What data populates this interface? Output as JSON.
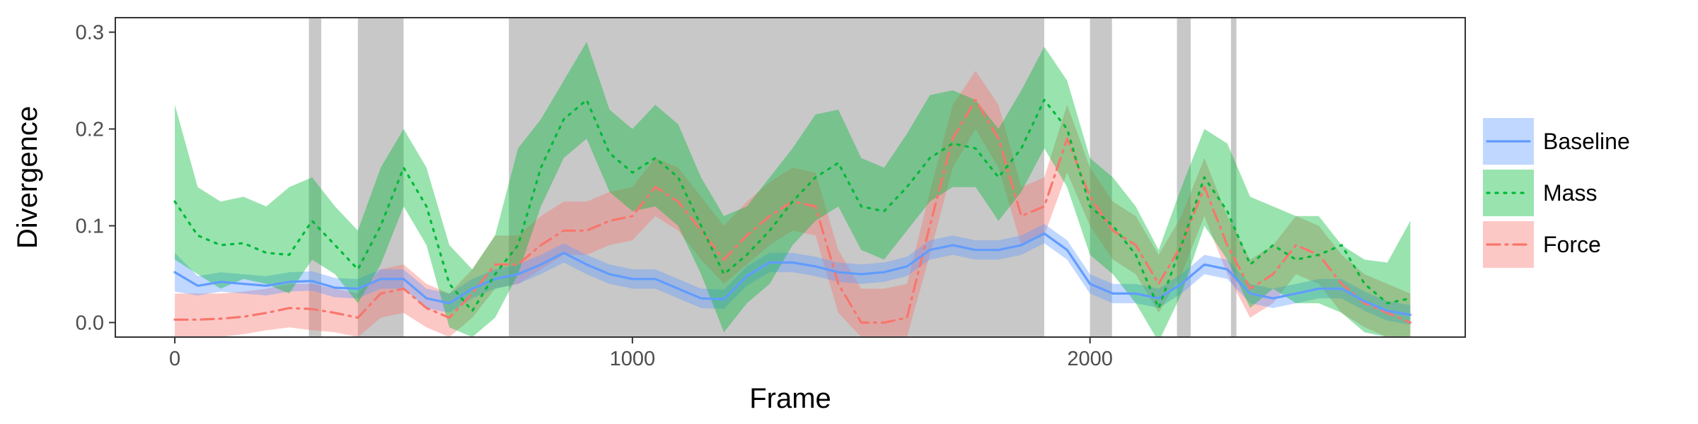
{
  "chart_data": {
    "type": "line",
    "title": "",
    "xlabel": "Frame",
    "ylabel": "Divergence",
    "xlim": [
      -130,
      2820
    ],
    "ylim": [
      -0.015,
      0.315
    ],
    "x_ticks": [
      0,
      1000,
      2000
    ],
    "x_tick_labels": [
      "0",
      "1000",
      "2000"
    ],
    "y_ticks": [
      0.0,
      0.1,
      0.2,
      0.3
    ],
    "y_tick_labels": [
      "0.0",
      "0.1",
      "0.2",
      "0.3"
    ],
    "grid": false,
    "legend_position": "right",
    "shaded_regions": [
      [
        293,
        320
      ],
      [
        400,
        500
      ],
      [
        730,
        1900
      ],
      [
        2000,
        2048
      ],
      [
        2190,
        2220
      ],
      [
        2308,
        2320
      ]
    ],
    "x": [
      0,
      50,
      100,
      150,
      200,
      250,
      300,
      350,
      400,
      450,
      500,
      550,
      600,
      650,
      700,
      750,
      800,
      850,
      900,
      950,
      1000,
      1050,
      1100,
      1150,
      1200,
      1250,
      1300,
      1350,
      1400,
      1450,
      1500,
      1550,
      1600,
      1650,
      1700,
      1750,
      1800,
      1850,
      1900,
      1950,
      2000,
      2050,
      2100,
      2150,
      2200,
      2250,
      2300,
      2350,
      2400,
      2450,
      2500,
      2550,
      2600,
      2650,
      2700
    ],
    "series": [
      {
        "name": "Baseline",
        "color": "#619CFF",
        "line_style": "solid",
        "values": [
          0.052,
          0.038,
          0.042,
          0.04,
          0.038,
          0.042,
          0.043,
          0.036,
          0.035,
          0.045,
          0.045,
          0.025,
          0.02,
          0.035,
          0.045,
          0.05,
          0.06,
          0.072,
          0.06,
          0.05,
          0.045,
          0.045,
          0.035,
          0.025,
          0.024,
          0.048,
          0.062,
          0.062,
          0.058,
          0.052,
          0.05,
          0.052,
          0.058,
          0.075,
          0.08,
          0.075,
          0.075,
          0.08,
          0.092,
          0.075,
          0.04,
          0.03,
          0.03,
          0.025,
          0.04,
          0.06,
          0.055,
          0.03,
          0.025,
          0.03,
          0.035,
          0.035,
          0.022,
          0.012,
          0.008
        ],
        "lower": [
          0.032,
          0.028,
          0.032,
          0.03,
          0.028,
          0.032,
          0.033,
          0.026,
          0.025,
          0.035,
          0.035,
          0.015,
          0.01,
          0.025,
          0.035,
          0.04,
          0.05,
          0.062,
          0.05,
          0.04,
          0.035,
          0.035,
          0.025,
          0.015,
          0.014,
          0.038,
          0.052,
          0.052,
          0.048,
          0.042,
          0.04,
          0.042,
          0.048,
          0.065,
          0.07,
          0.065,
          0.065,
          0.07,
          0.082,
          0.065,
          0.03,
          0.02,
          0.02,
          0.015,
          0.03,
          0.05,
          0.045,
          0.02,
          0.015,
          0.02,
          0.025,
          0.025,
          0.012,
          0.002,
          -0.002
        ],
        "upper": [
          0.072,
          0.048,
          0.052,
          0.05,
          0.048,
          0.052,
          0.053,
          0.046,
          0.045,
          0.055,
          0.055,
          0.035,
          0.03,
          0.045,
          0.055,
          0.06,
          0.07,
          0.082,
          0.07,
          0.06,
          0.055,
          0.055,
          0.045,
          0.035,
          0.034,
          0.058,
          0.072,
          0.072,
          0.068,
          0.062,
          0.06,
          0.062,
          0.068,
          0.085,
          0.09,
          0.085,
          0.085,
          0.09,
          0.102,
          0.085,
          0.05,
          0.04,
          0.04,
          0.035,
          0.05,
          0.07,
          0.065,
          0.04,
          0.035,
          0.04,
          0.045,
          0.045,
          0.032,
          0.022,
          0.018
        ]
      },
      {
        "name": "Mass",
        "color": "#00BA38",
        "line_style": "dotted",
        "values": [
          0.125,
          0.09,
          0.08,
          0.082,
          0.072,
          0.07,
          0.105,
          0.08,
          0.055,
          0.1,
          0.16,
          0.12,
          0.04,
          0.012,
          0.05,
          0.08,
          0.16,
          0.21,
          0.23,
          0.175,
          0.155,
          0.17,
          0.15,
          0.1,
          0.05,
          0.07,
          0.095,
          0.125,
          0.15,
          0.165,
          0.12,
          0.115,
          0.14,
          0.17,
          0.185,
          0.18,
          0.15,
          0.18,
          0.23,
          0.2,
          0.12,
          0.1,
          0.07,
          0.015,
          0.08,
          0.15,
          0.115,
          0.06,
          0.08,
          0.065,
          0.07,
          0.08,
          0.04,
          0.02,
          0.025
        ],
        "lower": [
          0.065,
          0.05,
          0.035,
          0.045,
          0.04,
          0.03,
          0.065,
          0.05,
          0.02,
          0.06,
          0.12,
          0.08,
          -0.005,
          -0.015,
          0.005,
          0.05,
          0.12,
          0.17,
          0.19,
          0.135,
          0.115,
          0.12,
          0.1,
          0.05,
          -0.01,
          0.02,
          0.04,
          0.08,
          0.105,
          0.12,
          0.075,
          0.065,
          0.095,
          0.125,
          0.14,
          0.14,
          0.105,
          0.135,
          0.18,
          0.14,
          0.07,
          0.05,
          0.02,
          -0.02,
          0.03,
          0.1,
          0.065,
          0.015,
          0.035,
          0.02,
          0.02,
          0.01,
          -0.01,
          -0.015,
          -0.015
        ],
        "upper": [
          0.225,
          0.14,
          0.125,
          0.13,
          0.12,
          0.14,
          0.15,
          0.12,
          0.095,
          0.16,
          0.2,
          0.16,
          0.08,
          0.055,
          0.09,
          0.18,
          0.21,
          0.25,
          0.29,
          0.22,
          0.2,
          0.225,
          0.205,
          0.15,
          0.11,
          0.12,
          0.15,
          0.18,
          0.215,
          0.22,
          0.17,
          0.16,
          0.195,
          0.235,
          0.24,
          0.23,
          0.2,
          0.24,
          0.285,
          0.25,
          0.17,
          0.15,
          0.12,
          0.075,
          0.14,
          0.2,
          0.185,
          0.13,
          0.12,
          0.11,
          0.11,
          0.08,
          0.065,
          0.062,
          0.105
        ]
      },
      {
        "name": "Force",
        "color": "#F8766D",
        "line_style": "dashdot",
        "values": [
          0.003,
          0.003,
          0.004,
          0.006,
          0.01,
          0.015,
          0.014,
          0.01,
          0.005,
          0.03,
          0.035,
          0.015,
          0.005,
          0.03,
          0.06,
          0.06,
          0.08,
          0.095,
          0.095,
          0.105,
          0.11,
          0.14,
          0.125,
          0.095,
          0.065,
          0.09,
          0.11,
          0.125,
          0.12,
          0.04,
          0.0,
          0.0,
          0.005,
          0.1,
          0.19,
          0.23,
          0.19,
          0.11,
          0.12,
          0.19,
          0.13,
          0.095,
          0.08,
          0.04,
          0.08,
          0.14,
          0.08,
          0.035,
          0.05,
          0.08,
          0.07,
          0.04,
          0.02,
          0.01,
          0.0
        ],
        "lower": [
          -0.015,
          -0.015,
          -0.015,
          -0.012,
          -0.008,
          -0.005,
          -0.008,
          -0.01,
          -0.015,
          0.005,
          0.01,
          -0.005,
          -0.015,
          0.005,
          0.035,
          0.04,
          0.055,
          0.07,
          0.07,
          0.08,
          0.085,
          0.11,
          0.095,
          0.065,
          0.04,
          0.06,
          0.08,
          0.095,
          0.09,
          0.01,
          -0.015,
          -0.015,
          -0.015,
          0.07,
          0.16,
          0.2,
          0.16,
          0.08,
          0.09,
          0.155,
          0.1,
          0.065,
          0.05,
          0.01,
          0.05,
          0.11,
          0.05,
          0.005,
          0.02,
          0.05,
          0.04,
          0.01,
          -0.005,
          -0.015,
          -0.015
        ],
        "upper": [
          0.03,
          0.03,
          0.03,
          0.032,
          0.035,
          0.04,
          0.04,
          0.035,
          0.03,
          0.055,
          0.06,
          0.04,
          0.03,
          0.055,
          0.09,
          0.09,
          0.11,
          0.125,
          0.125,
          0.135,
          0.14,
          0.17,
          0.16,
          0.13,
          0.1,
          0.125,
          0.145,
          0.16,
          0.155,
          0.075,
          0.035,
          0.035,
          0.04,
          0.135,
          0.225,
          0.26,
          0.225,
          0.14,
          0.15,
          0.225,
          0.16,
          0.125,
          0.11,
          0.07,
          0.11,
          0.17,
          0.11,
          0.065,
          0.08,
          0.11,
          0.1,
          0.07,
          0.05,
          0.04,
          0.03
        ]
      }
    ]
  }
}
